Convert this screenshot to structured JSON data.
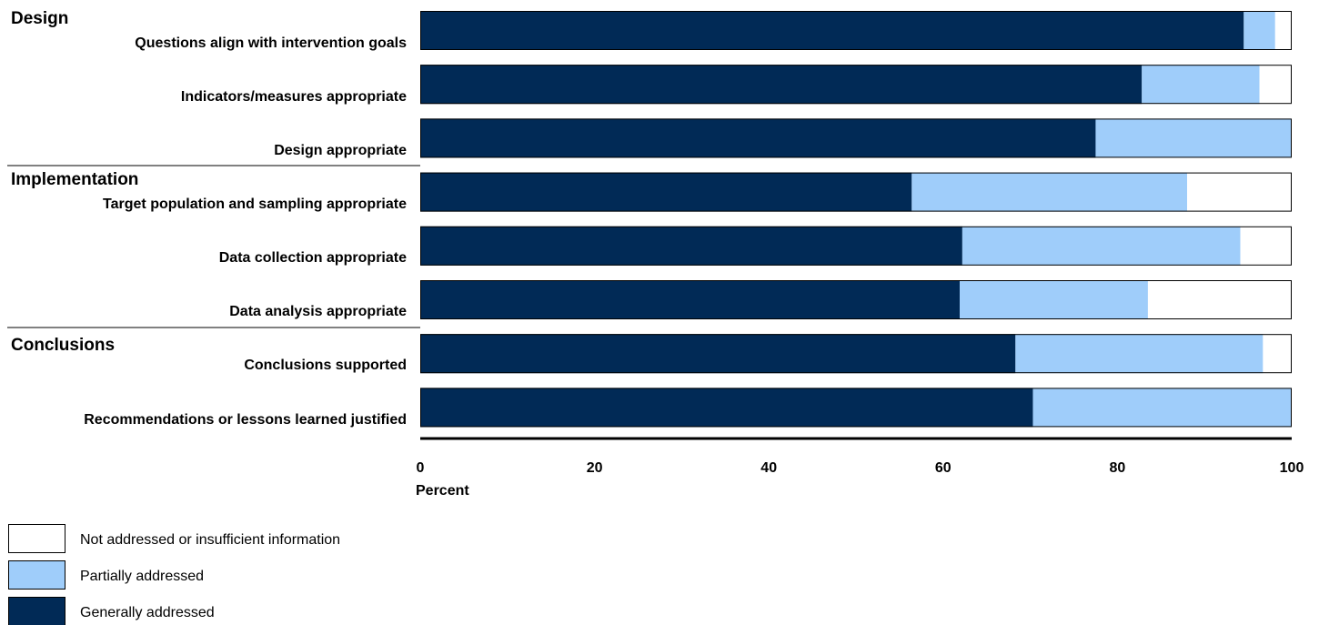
{
  "chart_data": {
    "type": "bar",
    "orientation": "horizontal",
    "stacked": true,
    "xlabel": "Percent",
    "xlim": [
      0,
      100
    ],
    "xticks": [
      "0",
      "20",
      "40",
      "60",
      "80",
      "100"
    ],
    "legend_position": "bottom-left",
    "groups": [
      {
        "name": "Design",
        "categories": [
          0,
          1,
          2
        ]
      },
      {
        "name": "Implementation",
        "categories": [
          3,
          4,
          5
        ]
      },
      {
        "name": "Conclusions",
        "categories": [
          6,
          7
        ]
      }
    ],
    "categories": [
      "Questions align with intervention goals",
      "Indicators/measures appropriate",
      "Design appropriate",
      "Target population and sampling appropriate",
      "Data collection appropriate",
      "Data analysis appropriate",
      "Conclusions supported",
      "Recommendations or lessons learned justified"
    ],
    "series": [
      {
        "name": "Generally addressed",
        "color": "#012a56",
        "values": [
          94.5,
          82.8,
          77.5,
          56.4,
          62.2,
          61.9,
          68.3,
          70.3
        ]
      },
      {
        "name": "Partially addressed",
        "color": "#9fcdfa",
        "values": [
          3.6,
          13.5,
          22.5,
          31.6,
          31.9,
          21.6,
          28.4,
          29.7
        ]
      },
      {
        "name": "Not addressed or insufficient information",
        "color": "#ffffff",
        "values": [
          1.9,
          3.7,
          0,
          12.0,
          5.9,
          16.5,
          3.3,
          0
        ]
      }
    ],
    "legend_order": [
      2,
      1,
      0
    ]
  }
}
